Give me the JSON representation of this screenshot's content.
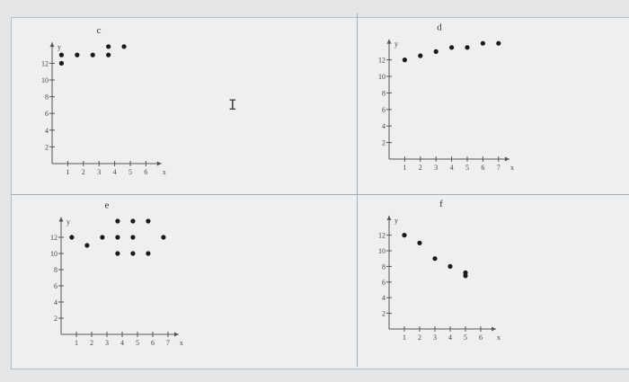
{
  "chart_data": [
    {
      "type": "scatter",
      "title": "c",
      "xlabel": "x",
      "ylabel": "y",
      "xticks": [
        1,
        2,
        3,
        4,
        5,
        6
      ],
      "yticks": [
        2,
        4,
        6,
        8,
        10,
        12
      ],
      "xlim": [
        0,
        7
      ],
      "ylim": [
        0,
        14.5
      ],
      "grid": false,
      "points": [
        [
          0.6,
          13
        ],
        [
          0.6,
          12
        ],
        [
          1.6,
          13
        ],
        [
          2.6,
          13
        ],
        [
          3.6,
          13
        ],
        [
          3.6,
          14
        ],
        [
          4.6,
          14
        ]
      ]
    },
    {
      "type": "scatter",
      "title": "d",
      "xlabel": "x",
      "ylabel": "y",
      "xticks": [
        1,
        2,
        3,
        4,
        5,
        6,
        7
      ],
      "yticks": [
        2,
        4,
        6,
        8,
        10,
        12
      ],
      "xlim": [
        0,
        7.7
      ],
      "ylim": [
        0,
        14.5
      ],
      "grid": false,
      "points": [
        [
          1,
          12
        ],
        [
          2,
          12.5
        ],
        [
          3,
          13
        ],
        [
          4,
          13.5
        ],
        [
          5,
          13.5
        ],
        [
          6,
          14
        ],
        [
          7,
          14
        ]
      ]
    },
    {
      "type": "scatter",
      "title": "e",
      "xlabel": "x",
      "ylabel": "y",
      "xticks": [
        1,
        2,
        3,
        4,
        5,
        6,
        7
      ],
      "yticks": [
        2,
        4,
        6,
        8,
        10,
        12
      ],
      "xlim": [
        0,
        7.7
      ],
      "ylim": [
        0,
        14.5
      ],
      "grid": false,
      "points": [
        [
          0.7,
          12
        ],
        [
          1.7,
          11
        ],
        [
          2.7,
          12
        ],
        [
          3.7,
          14
        ],
        [
          3.7,
          12
        ],
        [
          3.7,
          10
        ],
        [
          4.7,
          14
        ],
        [
          4.7,
          12
        ],
        [
          4.7,
          10
        ],
        [
          5.7,
          14
        ],
        [
          5.7,
          10
        ],
        [
          6.7,
          12
        ]
      ]
    },
    {
      "type": "scatter",
      "title": "f",
      "xlabel": "x",
      "ylabel": "y",
      "xticks": [
        1,
        2,
        3,
        4,
        5,
        6
      ],
      "yticks": [
        2,
        4,
        6,
        8,
        10,
        12
      ],
      "xlim": [
        0,
        7
      ],
      "ylim": [
        0,
        14.5
      ],
      "grid": false,
      "points": [
        [
          1,
          12
        ],
        [
          2,
          11
        ],
        [
          3,
          9
        ],
        [
          4,
          8
        ],
        [
          5,
          7.2
        ],
        [
          5,
          6.8
        ]
      ]
    }
  ],
  "colors": {
    "points": "#1a1a1a",
    "axes": "#555555",
    "background": "#eeeff0"
  }
}
